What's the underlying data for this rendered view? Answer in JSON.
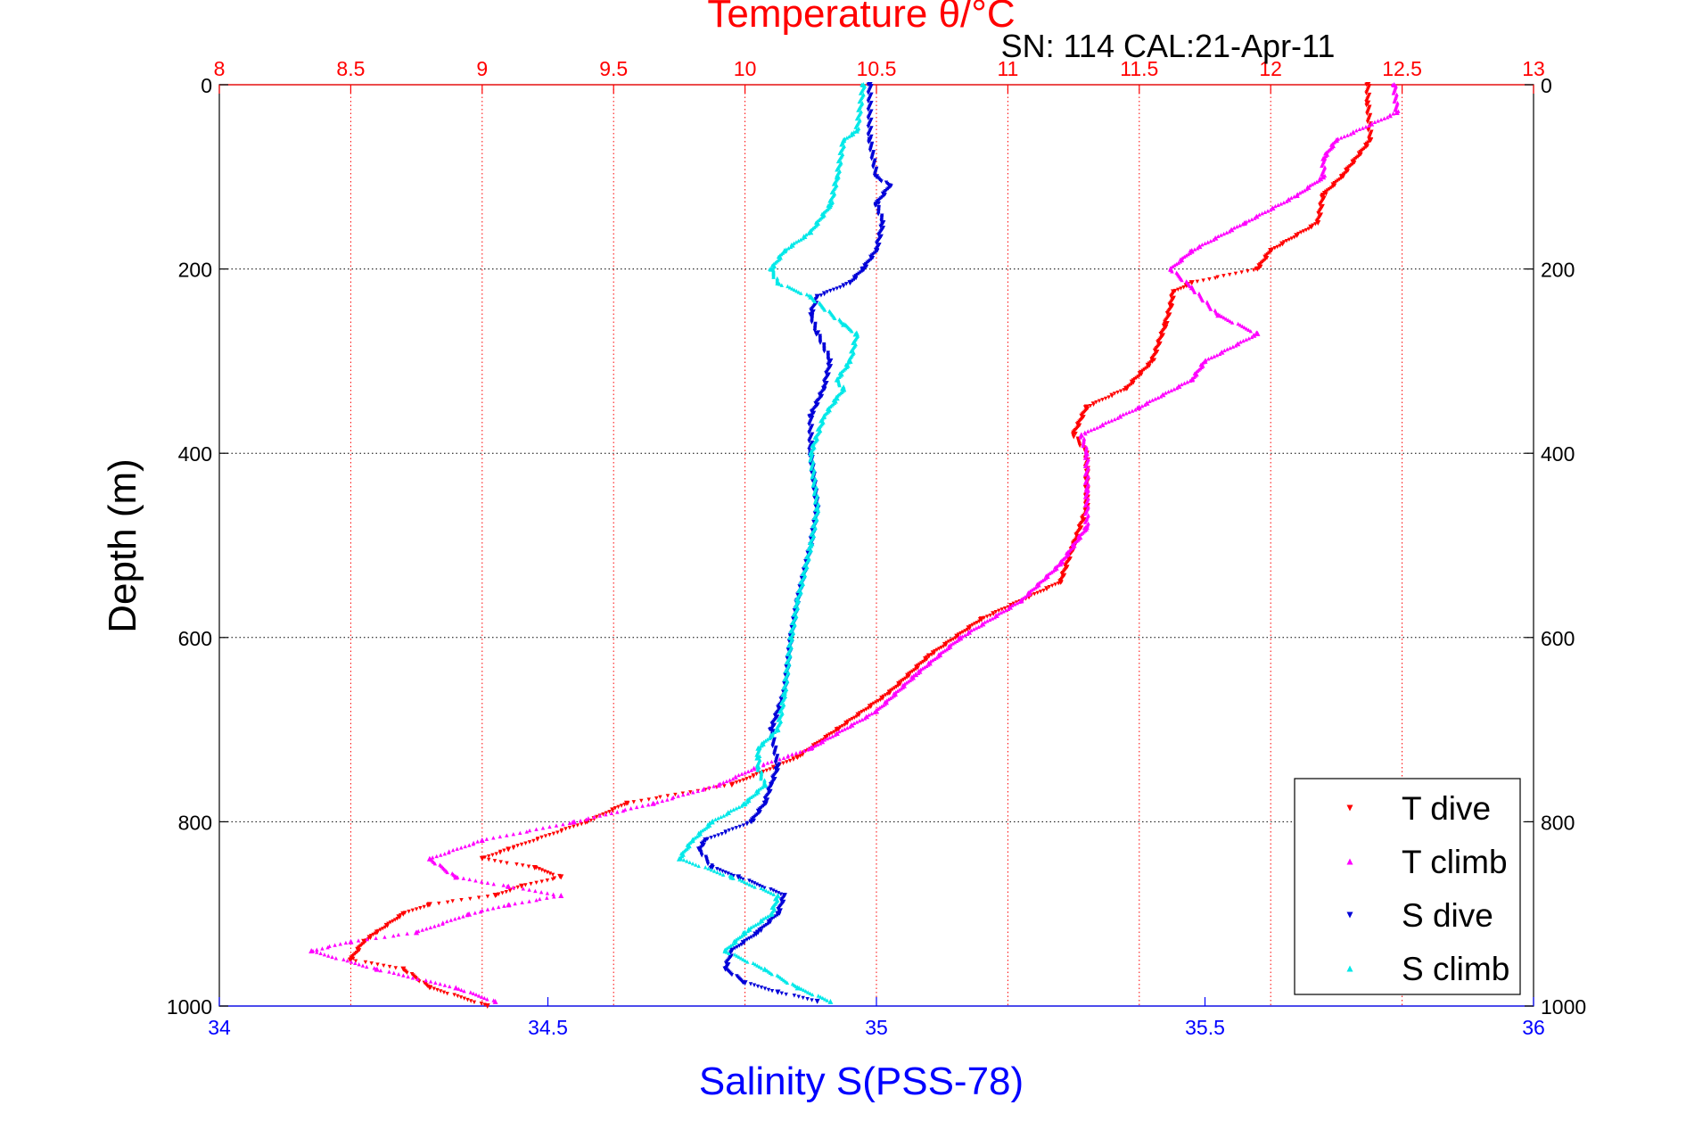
{
  "chart_data": {
    "type": "scatter",
    "title_top": "Temperature θ/°C",
    "subtitle": "SN: 114  CAL:21-Apr-11",
    "ylabel": "Depth (m)",
    "xlabel_bottom": "Salinity S(PSS-78)",
    "y_axis": {
      "range": [
        0,
        1000
      ],
      "inverted": true,
      "ticks": [
        "0",
        "200",
        "400",
        "600",
        "800",
        "1000"
      ],
      "tick_values": [
        0,
        200,
        400,
        600,
        800,
        1000
      ]
    },
    "x_bottom": {
      "range": [
        34,
        36
      ],
      "ticks": [
        "34",
        "34.5",
        "35",
        "35.5",
        "36"
      ],
      "tick_values": [
        34,
        34.5,
        35,
        35.5,
        36
      ]
    },
    "x_top": {
      "range": [
        8,
        13
      ],
      "ticks": [
        "8",
        "8.5",
        "9",
        "9.5",
        "10",
        "10.5",
        "11",
        "11.5",
        "12",
        "12.5",
        "13"
      ],
      "tick_values": [
        8,
        8.5,
        9,
        9.5,
        10,
        10.5,
        11,
        11.5,
        12,
        12.5,
        13
      ]
    },
    "grid": "dotted",
    "legend_position": "bottom-right",
    "colors": {
      "temperature_axis": "#ff0000",
      "salinity_axis": "#0000ff",
      "t_dive": "#ff0000",
      "t_climb": "#ff00ff",
      "s_dive": "#0000d8",
      "s_climb": "#00e8e8"
    },
    "series": [
      {
        "name": "T dive",
        "axis": "top",
        "marker": "triangle-down",
        "depth": [
          0,
          20,
          60,
          100,
          120,
          150,
          180,
          200,
          215,
          225,
          240,
          260,
          300,
          330,
          350,
          380,
          400,
          420,
          460,
          500,
          540,
          580,
          620,
          660,
          700,
          730,
          760,
          780,
          800,
          830,
          840,
          850,
          860,
          870,
          880,
          890,
          900,
          920,
          930,
          950,
          960,
          980,
          1000
        ],
        "values": [
          12.37,
          12.37,
          12.38,
          12.27,
          12.2,
          12.18,
          12.0,
          11.95,
          11.7,
          11.63,
          11.62,
          11.6,
          11.55,
          11.45,
          11.3,
          11.25,
          11.3,
          11.3,
          11.3,
          11.25,
          11.2,
          10.9,
          10.7,
          10.55,
          10.35,
          10.2,
          9.95,
          9.55,
          9.4,
          9.1,
          9.0,
          9.2,
          9.3,
          9.15,
          9.05,
          8.8,
          8.7,
          8.6,
          8.55,
          8.5,
          8.7,
          8.8,
          9.02
        ]
      },
      {
        "name": "T climb",
        "axis": "top",
        "marker": "triangle-up",
        "depth": [
          0,
          30,
          60,
          80,
          100,
          120,
          150,
          180,
          200,
          220,
          250,
          270,
          300,
          320,
          350,
          380,
          400,
          440,
          480,
          520,
          560,
          600,
          640,
          680,
          720,
          740,
          760,
          780,
          800,
          820,
          840,
          860,
          870,
          880,
          890,
          900,
          920,
          930,
          940,
          960,
          980,
          995
        ],
        "values": [
          12.47,
          12.48,
          12.25,
          12.2,
          12.2,
          12.1,
          11.9,
          11.7,
          11.62,
          11.7,
          11.8,
          11.95,
          11.75,
          11.7,
          11.5,
          11.28,
          11.3,
          11.3,
          11.3,
          11.2,
          11.05,
          10.82,
          10.65,
          10.5,
          10.25,
          10.05,
          9.9,
          9.65,
          9.35,
          9.0,
          8.8,
          8.9,
          9.1,
          9.3,
          9.1,
          8.95,
          8.75,
          8.5,
          8.35,
          8.6,
          8.9,
          9.05
        ]
      },
      {
        "name": "S dive",
        "axis": "bottom",
        "marker": "triangle-down",
        "depth": [
          0,
          60,
          100,
          110,
          130,
          150,
          180,
          200,
          215,
          230,
          250,
          270,
          300,
          330,
          360,
          400,
          460,
          500,
          560,
          600,
          660,
          700,
          740,
          760,
          780,
          800,
          820,
          830,
          850,
          860,
          880,
          900,
          920,
          940,
          960,
          975,
          985,
          995
        ],
        "values": [
          34.99,
          34.99,
          35.0,
          35.02,
          35.0,
          35.01,
          35.0,
          34.98,
          34.96,
          34.91,
          34.9,
          34.91,
          34.93,
          34.92,
          34.9,
          34.9,
          34.91,
          34.9,
          34.88,
          34.87,
          34.86,
          34.84,
          34.85,
          34.84,
          34.83,
          34.81,
          34.74,
          34.73,
          34.75,
          34.79,
          34.86,
          34.85,
          34.82,
          34.78,
          34.77,
          34.8,
          34.85,
          34.91
        ]
      },
      {
        "name": "S climb",
        "axis": "bottom",
        "marker": "triangle-up",
        "depth": [
          0,
          50,
          60,
          100,
          130,
          160,
          180,
          200,
          215,
          230,
          260,
          270,
          300,
          320,
          330,
          340,
          360,
          400,
          460,
          500,
          560,
          600,
          660,
          700,
          720,
          730,
          740,
          760,
          780,
          800,
          820,
          840,
          860,
          880,
          900,
          920,
          940,
          960,
          980,
          995
        ],
        "values": [
          34.98,
          34.97,
          34.95,
          34.94,
          34.93,
          34.9,
          34.86,
          34.84,
          34.85,
          34.9,
          34.95,
          34.97,
          34.96,
          34.94,
          34.95,
          34.94,
          34.92,
          34.9,
          34.91,
          34.9,
          34.88,
          34.87,
          34.86,
          34.85,
          34.82,
          34.82,
          34.82,
          34.83,
          34.8,
          34.75,
          34.72,
          34.7,
          34.78,
          34.85,
          34.84,
          34.8,
          34.77,
          34.83,
          34.88,
          34.93
        ]
      }
    ]
  }
}
